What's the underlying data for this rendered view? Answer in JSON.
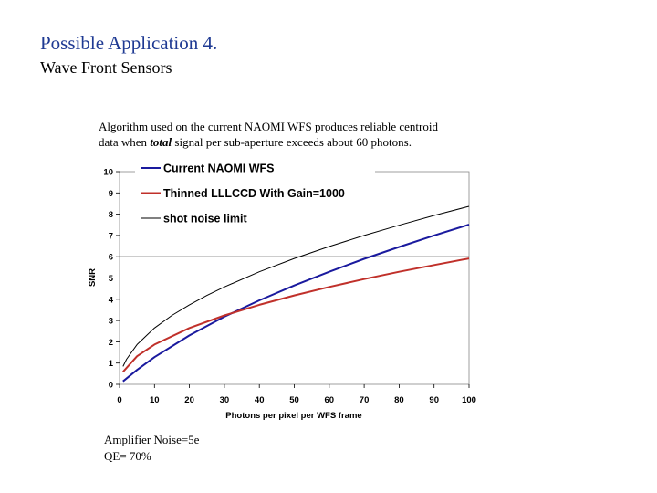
{
  "slide": {
    "title": "Possible Application 4.",
    "subtitle": "Wave Front Sensors",
    "note_line1": "Algorithm used on the current NAOMI WFS produces reliable centroid",
    "note_line2_prefix": "data  when ",
    "note_line2_emph": "total",
    "note_line2_suffix": " signal per sub-aperture exceeds about 60 photons.",
    "footnote_line1": "Amplifier Noise=5e",
    "footnote_line2": "QE= 70%"
  },
  "chart_data": {
    "type": "line",
    "xlabel": "Photons per pixel per WFS frame",
    "ylabel": "SNR",
    "xlim": [
      0,
      100
    ],
    "ylim": [
      0,
      10
    ],
    "xticks": [
      0,
      10,
      20,
      30,
      40,
      50,
      60,
      70,
      80,
      90,
      100
    ],
    "yticks": [
      0,
      1,
      2,
      3,
      4,
      5,
      6,
      7,
      8,
      9,
      10
    ],
    "grid": false,
    "reference_lines": [
      5,
      6
    ],
    "legend": {
      "placement": "top-left"
    },
    "series": [
      {
        "name": "Current NAOMI WFS",
        "color": "#1a1a9e",
        "x": [
          1,
          5,
          10,
          20,
          30,
          40,
          50,
          60,
          70,
          80,
          90,
          100
        ],
        "y": [
          0.14,
          0.68,
          1.28,
          2.3,
          3.18,
          3.95,
          4.65,
          5.29,
          5.9,
          6.46,
          7.0,
          7.51
        ]
      },
      {
        "name": "Thinned LLLCCD With Gain=1000",
        "color": "#c0302a",
        "x": [
          1,
          5,
          10,
          20,
          30,
          40,
          50,
          60,
          70,
          80,
          90,
          100
        ],
        "y": [
          0.59,
          1.32,
          1.87,
          2.65,
          3.24,
          3.74,
          4.18,
          4.58,
          4.95,
          5.29,
          5.61,
          5.92
        ]
      },
      {
        "name": "shot noise limit",
        "color": "#000000",
        "x": [
          1,
          2,
          5,
          10,
          15,
          20,
          25,
          30,
          40,
          50,
          60,
          70,
          80,
          90,
          100
        ],
        "y": [
          0.84,
          1.18,
          1.87,
          2.65,
          3.24,
          3.74,
          4.18,
          4.58,
          5.29,
          5.92,
          6.48,
          7.0,
          7.48,
          7.94,
          8.37
        ]
      }
    ]
  }
}
